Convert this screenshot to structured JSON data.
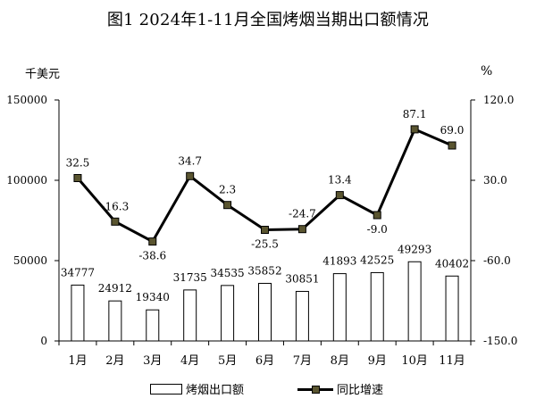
{
  "chart_data": {
    "type": "bar+line",
    "title": "图1 2024年1-11月全国烤烟当期出口额情况",
    "categories": [
      "1月",
      "2月",
      "3月",
      "4月",
      "5月",
      "6月",
      "7月",
      "8月",
      "9月",
      "10月",
      "11月"
    ],
    "series": [
      {
        "name": "烤烟出口额",
        "type": "bar",
        "axis": "left",
        "values": [
          34777,
          24912,
          19340,
          31735,
          34535,
          35852,
          30851,
          41893,
          42525,
          49293,
          40402
        ]
      },
      {
        "name": "同比增速",
        "type": "line",
        "axis": "right",
        "values": [
          32.5,
          -16.3,
          -38.6,
          34.7,
          2.3,
          -25.5,
          -24.7,
          13.4,
          -9.0,
          87.1,
          69.0
        ],
        "labels": [
          "32.5",
          "-16.3",
          "-38.6",
          "34.7",
          "2.3",
          "-25.5",
          "-24.7",
          "13.4",
          "-9.0",
          "87.1",
          "69.0"
        ]
      }
    ],
    "y_left": {
      "unit": "千美元",
      "ylim": [
        0,
        150000
      ],
      "ticks": [
        "0",
        "50000",
        "100000",
        "150000"
      ]
    },
    "y_right": {
      "unit": "%",
      "ylim": [
        -150,
        120
      ],
      "ticks": [
        "-150.0",
        "-60.0",
        "30.0",
        "120.0"
      ]
    },
    "grid": false,
    "legend": "bottom",
    "colors": {
      "bar_fill": "#ffffff",
      "bar_stroke": "#000000",
      "line": "#000000",
      "marker": "#5a5530"
    }
  }
}
